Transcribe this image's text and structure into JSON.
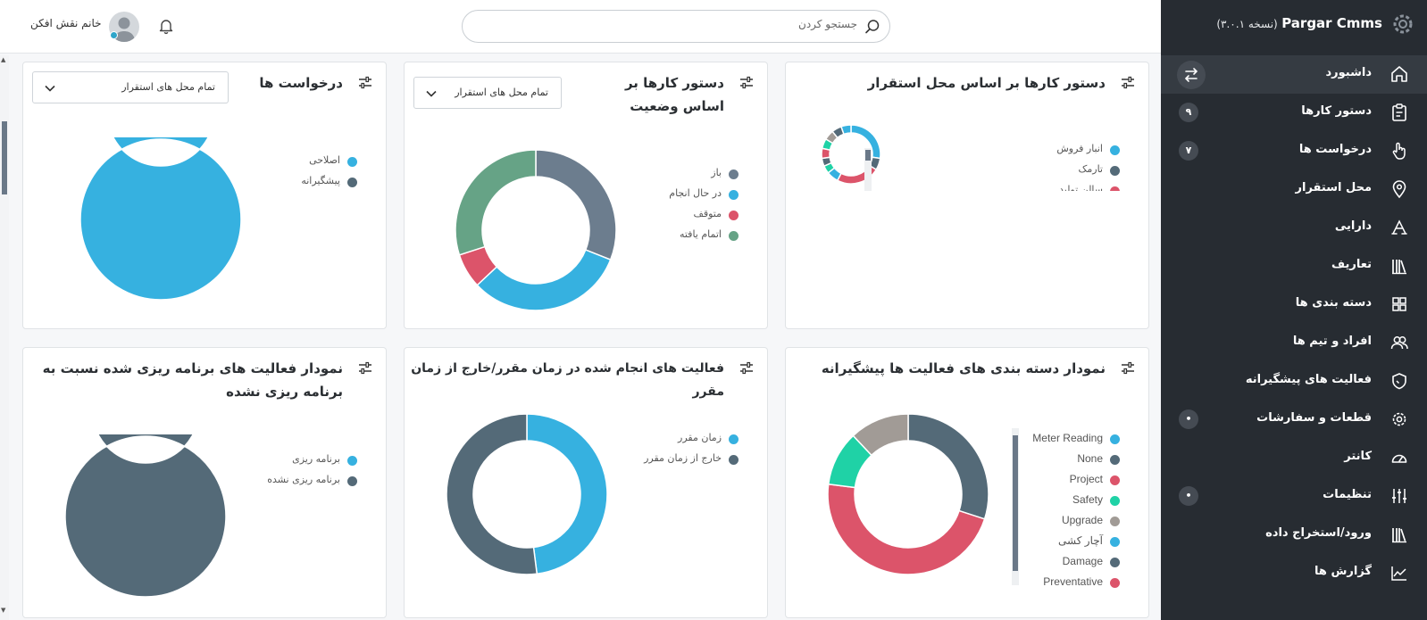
{
  "app": {
    "name": "Pargar Cmms",
    "version": "(نسخه ۳.۰.۱)"
  },
  "sidebar": {
    "items": [
      {
        "label": "داشبورد",
        "icon": "home-icon",
        "badge": "",
        "active": true
      },
      {
        "label": "دستور کارها",
        "icon": "clipboard-icon",
        "badge": "۹"
      },
      {
        "label": "درخواست ها",
        "icon": "hand-pointer-icon",
        "badge": "۷"
      },
      {
        "label": "محل استقرار",
        "icon": "map-pin-icon",
        "badge": ""
      },
      {
        "label": "دارایی",
        "icon": "tools-icon",
        "badge": ""
      },
      {
        "label": "تعاریف",
        "icon": "library-icon",
        "badge": ""
      },
      {
        "label": "دسته بندی ها",
        "icon": "grid-icon",
        "badge": ""
      },
      {
        "label": "افراد و تیم ها",
        "icon": "users-icon",
        "badge": ""
      },
      {
        "label": "فعالیت های پیشگیرانه",
        "icon": "shield-icon",
        "badge": ""
      },
      {
        "label": "قطعات و سفارشات",
        "icon": "gear-icon",
        "badge": "•"
      },
      {
        "label": "کانتر",
        "icon": "gauge-icon",
        "badge": ""
      },
      {
        "label": "تنظیمات",
        "icon": "sliders-icon",
        "badge": "•"
      },
      {
        "label": "ورود/استخراج داده",
        "icon": "library-icon",
        "badge": ""
      },
      {
        "label": "گزارش ها",
        "icon": "line-chart-icon",
        "badge": ""
      }
    ]
  },
  "header": {
    "search_placeholder": "جستجو کردن",
    "user_name": "خانم نقش افکن"
  },
  "cards": {
    "wo_location": {
      "title": "دستور کارها بر اساس محل استقرار",
      "legend": [
        "انبار فروش",
        "تارمک",
        "سالن تولید"
      ]
    },
    "wo_status": {
      "title": "دستور کارها بر اساس وضعیت",
      "dropdown": "تمام محل های استقرار",
      "legend": [
        "باز",
        "در حال انجام",
        "متوقف",
        "اتمام یافته"
      ]
    },
    "requests": {
      "title": "درخواست ها",
      "dropdown": "تمام محل های استقرار",
      "legend": [
        "اصلاحی",
        "پیشگیرانه"
      ]
    },
    "pm_categories": {
      "title": "نمودار دسته بندی های فعالیت ها پیشگیرانه",
      "legend": [
        "Meter Reading",
        "None",
        "Project",
        "Safety",
        "Upgrade",
        "آچار کشی",
        "Damage",
        "Preventative"
      ]
    },
    "on_time": {
      "title": "فعالیت های انجام شده در زمان مقرر/خارج از زمان مقرر",
      "legend": [
        "زمان مقرر",
        "خارج از زمان مقرر"
      ]
    },
    "planned": {
      "title": "نمودار فعالیت های برنامه ریزی شده نسبت به برنامه ریزی نشده",
      "legend": [
        "برنامه ریزی",
        "برنامه ریزی نشده"
      ]
    }
  },
  "colors": {
    "blue": "#36b1e0",
    "slate": "#546a78",
    "slate_light": "#6c7d8e",
    "red": "#dc546a",
    "green": "#66a386",
    "teal": "#1fd2a6",
    "gray": "#a19b96",
    "sidebar_bg": "#272c32"
  },
  "chart_data": [
    {
      "type": "pie",
      "title": "دستور کارها بر اساس وضعیت",
      "categories": [
        "باز",
        "در حال انجام",
        "متوقف",
        "اتمام یافته"
      ],
      "values": [
        31,
        32,
        7,
        30
      ],
      "colors": [
        "#6c7d8e",
        "#36b1e0",
        "#dc546a",
        "#66a386"
      ]
    },
    {
      "type": "pie",
      "title": "درخواست ها",
      "categories": [
        "اصلاحی",
        "پیشگیرانه"
      ],
      "values": [
        100,
        0
      ],
      "colors": [
        "#36b1e0",
        "#546a78"
      ]
    },
    {
      "type": "pie",
      "title": "دستور کارها بر اساس محل استقرار",
      "categories": [
        "انبار فروش",
        "تارمک",
        "سالن تولید",
        "",
        "",
        "",
        "",
        "",
        "",
        "",
        ""
      ],
      "values": [
        25,
        6,
        22,
        6,
        4,
        4,
        5,
        5,
        5,
        5,
        5
      ],
      "colors": [
        "#36b1e0",
        "#546a78",
        "#dc546a",
        "#36b1e0",
        "#1fd2a6",
        "#546a78",
        "#dc546a",
        "#1fd2a6",
        "#a19b96",
        "#546a78",
        "#36b1e0"
      ]
    },
    {
      "type": "pie",
      "title": "نمودار دسته بندی های فعالیت ها پیشگیرانه",
      "categories": [
        "Meter Reading",
        "None",
        "Project",
        "Safety",
        "Upgrade",
        "آچار کشی",
        "Damage",
        "Preventative"
      ],
      "values": [
        0,
        30,
        47,
        11,
        12,
        0,
        0,
        0
      ],
      "colors": [
        "#36b1e0",
        "#546a78",
        "#dc546a",
        "#1fd2a6",
        "#a19b96",
        "#36b1e0",
        "#546a78",
        "#dc546a"
      ]
    },
    {
      "type": "pie",
      "title": "فعالیت های انجام شده در زمان مقرر/خارج از زمان مقرر",
      "categories": [
        "زمان مقرر",
        "خارج از زمان مقرر"
      ],
      "values": [
        48,
        52
      ],
      "colors": [
        "#36b1e0",
        "#546a78"
      ]
    },
    {
      "type": "pie",
      "title": "نمودار فعالیت های برنامه ریزی شده نسبت به برنامه ریزی نشده",
      "categories": [
        "برنامه ریزی",
        "برنامه ریزی نشده"
      ],
      "values": [
        0,
        100
      ],
      "colors": [
        "#36b1e0",
        "#546a78"
      ]
    }
  ]
}
